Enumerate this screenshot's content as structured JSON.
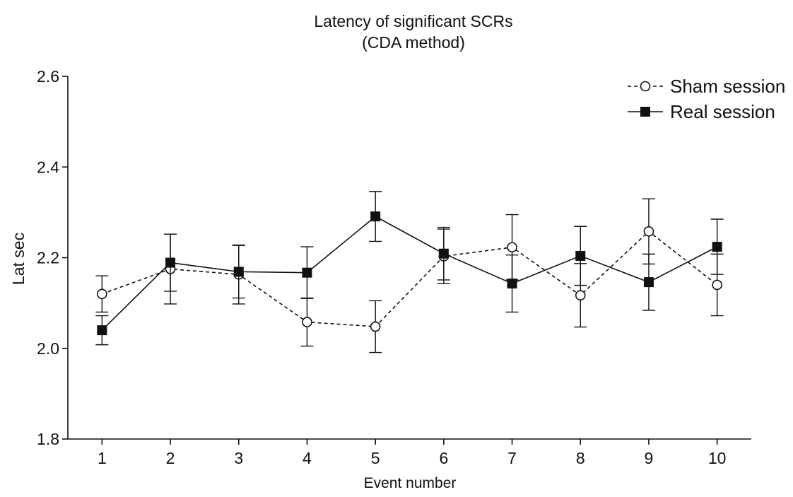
{
  "chart_data": {
    "type": "line",
    "title": [
      "Latency of significant SCRs",
      "(CDA method)"
    ],
    "xlabel": "Event number",
    "ylabel": "Lat sec",
    "x": [
      1,
      2,
      3,
      4,
      5,
      6,
      7,
      8,
      9,
      10
    ],
    "xlim": [
      0.5,
      10.5
    ],
    "ylim": [
      1.8,
      2.6
    ],
    "yticks": [
      1.8,
      2.0,
      2.2,
      2.4,
      2.6
    ],
    "ytick_labels": [
      "1.8",
      "2.0",
      "2.2",
      "2.4",
      "2.6"
    ],
    "xtick_labels": [
      "1",
      "2",
      "3",
      "4",
      "5",
      "6",
      "7",
      "8",
      "9",
      "10"
    ],
    "grid": false,
    "legend_position": "top-right",
    "series": [
      {
        "name": "Sham session",
        "marker": "open-circle",
        "line_style": "dashed",
        "color": "#111111",
        "values": [
          2.12,
          2.175,
          2.163,
          2.058,
          2.048,
          2.203,
          2.223,
          2.117,
          2.258,
          2.14
        ],
        "error": [
          0.04,
          0.077,
          0.065,
          0.053,
          0.057,
          0.06,
          0.072,
          0.07,
          0.072,
          0.068
        ]
      },
      {
        "name": "Real session",
        "marker": "filled-square",
        "line_style": "solid",
        "color": "#111111",
        "values": [
          2.04,
          2.189,
          2.169,
          2.167,
          2.291,
          2.209,
          2.143,
          2.204,
          2.146,
          2.224
        ],
        "error": [
          0.032,
          0.063,
          0.058,
          0.057,
          0.055,
          0.058,
          0.063,
          0.065,
          0.062,
          0.061
        ]
      }
    ]
  }
}
